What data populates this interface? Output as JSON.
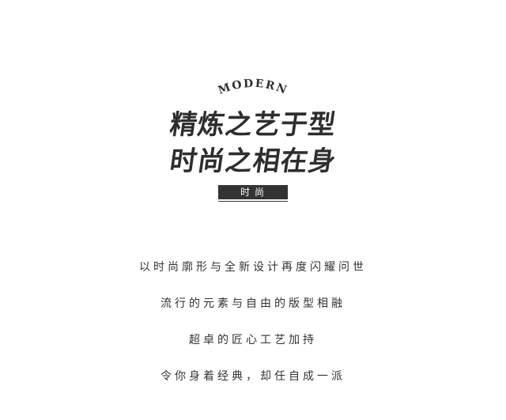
{
  "header": {
    "arc_label": "MODERN",
    "headline_1": "精炼之艺于型",
    "headline_2": "时尚之相在身",
    "badge": "时尚"
  },
  "body": {
    "lines": [
      "以时尚廓形与全新设计再度闪耀问世",
      "流行的元素与自由的版型相融",
      "超卓的匠心工艺加持",
      "令你身着经典，却任自成一派"
    ]
  },
  "colors": {
    "text": "#333333",
    "badge_bg": "#333333",
    "badge_text": "#ffffff",
    "background": "#ffffff"
  }
}
